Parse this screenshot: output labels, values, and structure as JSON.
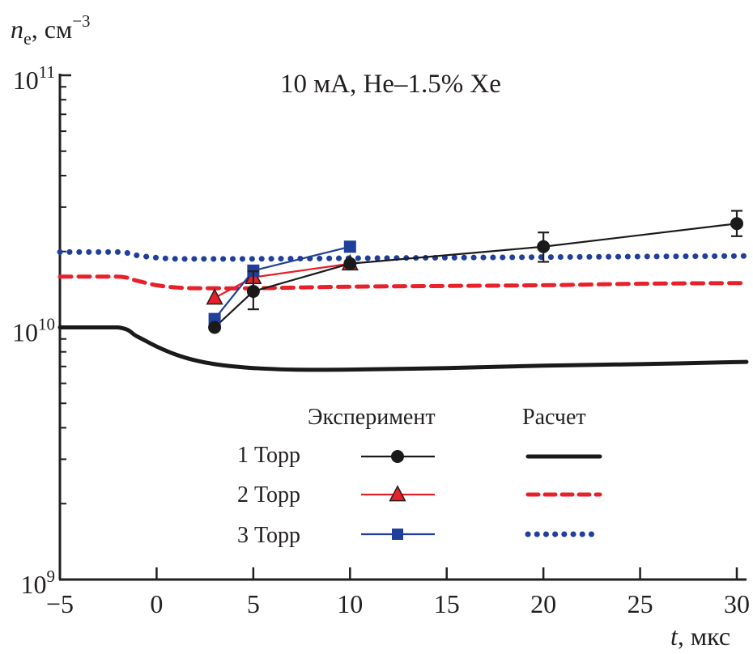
{
  "chart_data": {
    "type": "line",
    "title": "10 мА, He–1.5% Xe",
    "ylabel": "n_e, см^-3",
    "ylabel_parts": {
      "symbol": "n",
      "subscript": "e",
      "unit": ", см",
      "superscript": "−3"
    },
    "xlabel": "t, мкс",
    "xlabel_parts": {
      "symbol": "t",
      "unit": ", мкс"
    },
    "xlim": [
      -5,
      30
    ],
    "ylim": [
      1000000000.0,
      100000000000.0
    ],
    "yscale": "log",
    "x_ticks": [
      -5,
      0,
      5,
      10,
      15,
      20,
      25,
      30
    ],
    "x_tick_labels": [
      "−5",
      "0",
      "5",
      "10",
      "15",
      "20",
      "25",
      "30"
    ],
    "y_ticks": [
      {
        "value": 1000000000.0,
        "base": "10",
        "exp": "9"
      },
      {
        "value": 10000000000.0,
        "base": "10",
        "exp": "10"
      },
      {
        "value": 100000000000.0,
        "base": "10",
        "exp": "11"
      }
    ],
    "grid": false,
    "legend": {
      "placement": "bottom-center",
      "col_headers": [
        "Эксперимент",
        "Расчет"
      ],
      "rows": [
        "1 Торр",
        "2 Торр",
        "3 Торр"
      ]
    },
    "colors": {
      "p1": "#1a1a1a",
      "p2": "#e8202a",
      "p3": "#1f3f9a"
    },
    "experiment": [
      {
        "name": "1 Торр",
        "marker": "circle",
        "color_key": "p1",
        "x": [
          3,
          5,
          10,
          20,
          30
        ],
        "y": [
          10000000000.0,
          13900000000.0,
          17900000000.0,
          20900000000.0,
          25800000000.0
        ],
        "err_low": [
          null,
          11800000000.0,
          null,
          18200000000.0,
          23000000000.0
        ],
        "err_high": [
          null,
          16700000000.0,
          null,
          23800000000.0,
          29000000000.0
        ]
      },
      {
        "name": "2 Торр",
        "marker": "triangle",
        "color_key": "p2",
        "x": [
          3,
          5,
          10
        ],
        "y": [
          13100000000.0,
          15800000000.0,
          17900000000.0
        ]
      },
      {
        "name": "3 Торр",
        "marker": "square",
        "color_key": "p3",
        "x": [
          3,
          5,
          10
        ],
        "y": [
          10800000000.0,
          16800000000.0,
          20900000000.0
        ]
      }
    ],
    "calculation": [
      {
        "name": "1 Торр",
        "style": "solid",
        "color_key": "p1",
        "x": [
          -5,
          -2,
          -1,
          0,
          1,
          2,
          3,
          4,
          5,
          7,
          10,
          15,
          20,
          25,
          30.5
        ],
        "y": [
          10000000000.0,
          10000000000.0,
          9200000000.0,
          8400000000.0,
          7800000000.0,
          7400000000.0,
          7150000000.0,
          7000000000.0,
          6900000000.0,
          6800000000.0,
          6800000000.0,
          6900000000.0,
          7050000000.0,
          7150000000.0,
          7300000000.0
        ]
      },
      {
        "name": "2 Торр",
        "style": "dashed",
        "color_key": "p2",
        "x": [
          -5,
          -2,
          -1,
          0,
          1,
          2,
          3,
          5,
          10,
          15,
          20,
          25,
          30.5
        ],
        "y": [
          15900000000.0,
          15900000000.0,
          15300000000.0,
          14700000000.0,
          14400000000.0,
          14300000000.0,
          14300000000.0,
          14300000000.0,
          14500000000.0,
          14600000000.0,
          14700000000.0,
          14900000000.0,
          15000000000.0
        ]
      },
      {
        "name": "3 Торр",
        "style": "dotted",
        "color_key": "p3",
        "x": [
          -5,
          -2,
          -1,
          0,
          1,
          2,
          5,
          10,
          15,
          20,
          25,
          30.5
        ],
        "y": [
          19900000000.0,
          19900000000.0,
          19300000000.0,
          18900000000.0,
          18700000000.0,
          18700000000.0,
          18700000000.0,
          18800000000.0,
          18900000000.0,
          19000000000.0,
          19100000000.0,
          19200000000.0
        ]
      }
    ]
  }
}
